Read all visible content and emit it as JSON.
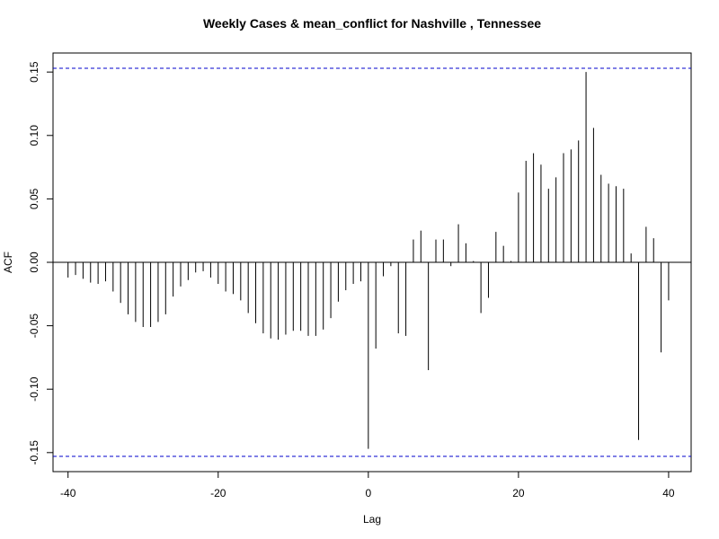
{
  "chart_data": {
    "type": "bar",
    "title": "Weekly Cases & mean_conflict for Nashville , Tennessee",
    "xlabel": "Lag",
    "ylabel": "ACF",
    "xlim": [
      -42,
      43
    ],
    "ylim": [
      -0.165,
      0.165
    ],
    "xticks": [
      -40,
      -20,
      0,
      20,
      40
    ],
    "xtick_labels": [
      "-40",
      "-20",
      "0",
      "20",
      "40"
    ],
    "yticks": [
      -0.15,
      -0.1,
      -0.05,
      0.0,
      0.05,
      0.1,
      0.15
    ],
    "ytick_labels": [
      "-0.15",
      "-0.10",
      "-0.05",
      "0.00",
      "0.05",
      "0.10",
      "0.15"
    ],
    "confidence_bound": 0.153,
    "confidence_color": "#0000cc",
    "bar_color": "#000000",
    "grid": false,
    "x": [
      -40,
      -39,
      -38,
      -37,
      -36,
      -35,
      -34,
      -33,
      -32,
      -31,
      -30,
      -29,
      -28,
      -27,
      -26,
      -25,
      -24,
      -23,
      -22,
      -21,
      -20,
      -19,
      -18,
      -17,
      -16,
      -15,
      -14,
      -13,
      -12,
      -11,
      -10,
      -9,
      -8,
      -7,
      -6,
      -5,
      -4,
      -3,
      -2,
      -1,
      0,
      1,
      2,
      3,
      4,
      5,
      6,
      7,
      8,
      9,
      10,
      11,
      12,
      13,
      14,
      15,
      16,
      17,
      18,
      19,
      20,
      21,
      22,
      23,
      24,
      25,
      26,
      27,
      28,
      29,
      30,
      31,
      32,
      33,
      34,
      35,
      36,
      37,
      38,
      39,
      40
    ],
    "values": [
      -0.012,
      -0.01,
      -0.013,
      -0.016,
      -0.017,
      -0.015,
      -0.023,
      -0.032,
      -0.041,
      -0.047,
      -0.051,
      -0.051,
      -0.047,
      -0.041,
      -0.027,
      -0.019,
      -0.014,
      -0.008,
      -0.007,
      -0.012,
      -0.017,
      -0.023,
      -0.025,
      -0.03,
      -0.04,
      -0.048,
      -0.056,
      -0.06,
      -0.061,
      -0.057,
      -0.054,
      -0.054,
      -0.058,
      -0.058,
      -0.053,
      -0.044,
      -0.031,
      -0.022,
      -0.017,
      -0.015,
      -0.147,
      -0.068,
      -0.011,
      -0.003,
      -0.056,
      -0.058,
      0.018,
      0.025,
      -0.085,
      0.018,
      0.018,
      -0.003,
      0.03,
      0.015,
      0.001,
      -0.04,
      -0.028,
      0.024,
      0.013,
      0.001,
      0.055,
      0.08,
      0.086,
      0.077,
      0.058,
      0.067,
      0.086,
      0.089,
      0.096,
      0.15,
      0.106,
      0.069,
      0.062,
      0.06,
      0.058,
      0.007,
      -0.14,
      0.028,
      0.019,
      -0.071,
      -0.03
    ]
  }
}
